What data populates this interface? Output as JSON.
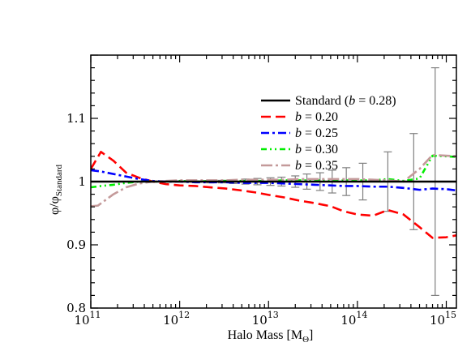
{
  "chart_data": {
    "type": "line",
    "title": "",
    "xlabel": "Halo Mass [M",
    "xlabel_sub": "Θ",
    "xlabel_close": "]",
    "ylabel": "φ/φ",
    "ylabel_sub": "Standard",
    "x_scale": "log",
    "xlim": [
      100000000000.0,
      1300000000000000.0
    ],
    "ylim": [
      0.8,
      1.2
    ],
    "grid": false,
    "legend_position": "top-right",
    "x_ticks": [
      {
        "value": 100000000000.0,
        "base": "10",
        "exp": "11"
      },
      {
        "value": 1000000000000.0,
        "base": "10",
        "exp": "12"
      },
      {
        "value": 10000000000000.0,
        "base": "10",
        "exp": "13"
      },
      {
        "value": 100000000000000.0,
        "base": "10",
        "exp": "14"
      },
      {
        "value": 1000000000000000.0,
        "base": "10",
        "exp": "15"
      }
    ],
    "y_ticks": [
      {
        "value": 0.8,
        "label": "0.8"
      },
      {
        "value": 0.9,
        "label": "0.9"
      },
      {
        "value": 1.0,
        "label": "1"
      },
      {
        "value": 1.1,
        "label": "1.1"
      }
    ],
    "series": [
      {
        "name": "Standard",
        "legend_paren_open": " (",
        "legend_b": "b",
        "legend_value": " = 0.28)",
        "color": "#000000",
        "dash": "solid",
        "x": [
          100000000000.0,
          1300000000000000.0
        ],
        "y": [
          1.0,
          1.0
        ]
      },
      {
        "name": "b = 0.20",
        "legend_b": "b",
        "legend_value": " = 0.20",
        "color": "#ff0000",
        "dash": "dashed",
        "x": [
          100000000000.0,
          130000000000.0,
          180000000000.0,
          250000000000.0,
          350000000000.0,
          500000000000.0,
          700000000000.0,
          1000000000000.0,
          1500000000000.0,
          2200000000000.0,
          3300000000000.0,
          5000000000000.0,
          7000000000000.0,
          10000000000000.0,
          15000000000000.0,
          22000000000000.0,
          33000000000000.0,
          50000000000000.0,
          70000000000000.0,
          100000000000000.0,
          150000000000000.0,
          220000000000000.0,
          330000000000000.0,
          500000000000000.0,
          700000000000000.0,
          1000000000000000.0,
          1300000000000000.0
        ],
        "y": [
          1.02,
          1.047,
          1.033,
          1.014,
          1.006,
          1.0,
          0.996,
          0.994,
          0.993,
          0.991,
          0.989,
          0.986,
          0.983,
          0.979,
          0.975,
          0.97,
          0.966,
          0.961,
          0.953,
          0.948,
          0.946,
          0.955,
          0.948,
          0.928,
          0.911,
          0.912,
          0.915
        ]
      },
      {
        "name": "b = 0.25",
        "legend_b": "b",
        "legend_value": " = 0.25",
        "color": "#0000ff",
        "dash": "dashdot",
        "x": [
          100000000000.0,
          130000000000.0,
          180000000000.0,
          250000000000.0,
          350000000000.0,
          500000000000.0,
          700000000000.0,
          1000000000000.0,
          1500000000000.0,
          2200000000000.0,
          3300000000000.0,
          5000000000000.0,
          7000000000000.0,
          10000000000000.0,
          15000000000000.0,
          22000000000000.0,
          33000000000000.0,
          50000000000000.0,
          70000000000000.0,
          100000000000000.0,
          150000000000000.0,
          220000000000000.0,
          330000000000000.0,
          500000000000000.0,
          700000000000000.0,
          1000000000000000.0,
          1300000000000000.0
        ],
        "y": [
          1.018,
          1.016,
          1.012,
          1.008,
          1.004,
          1.001,
          1.0,
          1.0,
          0.999,
          0.999,
          0.999,
          0.998,
          0.998,
          0.998,
          0.997,
          0.996,
          0.995,
          0.994,
          0.993,
          0.993,
          0.992,
          0.992,
          0.99,
          0.987,
          0.989,
          0.988,
          0.986
        ]
      },
      {
        "name": "b = 0.30",
        "legend_b": "b",
        "legend_value": " = 0.30",
        "color": "#00ee00",
        "dash": "dashdotdot",
        "x": [
          100000000000.0,
          130000000000.0,
          180000000000.0,
          250000000000.0,
          350000000000.0,
          500000000000.0,
          700000000000.0,
          1000000000000.0,
          1500000000000.0,
          2200000000000.0,
          3300000000000.0,
          5000000000000.0,
          7000000000000.0,
          10000000000000.0,
          15000000000000.0,
          22000000000000.0,
          33000000000000.0,
          50000000000000.0,
          70000000000000.0,
          100000000000000.0,
          150000000000000.0,
          220000000000000.0,
          330000000000000.0,
          500000000000000.0,
          700000000000000.0,
          1000000000000000.0,
          1300000000000000.0
        ],
        "y": [
          0.991,
          0.993,
          0.995,
          0.998,
          1.0,
          1.0,
          1.0,
          1.001,
          1.0,
          1.001,
          1.001,
          1.001,
          1.001,
          1.001,
          1.002,
          1.002,
          1.002,
          1.002,
          1.002,
          1.002,
          1.002,
          1.004,
          1.001,
          1.005,
          1.041,
          1.04,
          1.039
        ]
      },
      {
        "name": "b = 0.35",
        "legend_b": "b",
        "legend_value": " = 0.35",
        "color": "#c49a9a",
        "dash": "dashdot-long",
        "x": [
          100000000000.0,
          120000000000.0,
          180000000000.0,
          250000000000.0,
          350000000000.0,
          500000000000.0,
          700000000000.0,
          1000000000000.0,
          1500000000000.0,
          2200000000000.0,
          3300000000000.0,
          5000000000000.0,
          7000000000000.0,
          10000000000000.0,
          15000000000000.0,
          22000000000000.0,
          33000000000000.0,
          50000000000000.0,
          70000000000000.0,
          100000000000000.0,
          150000000000000.0,
          220000000000000.0,
          330000000000000.0,
          500000000000000.0,
          700000000000000.0,
          1000000000000000.0,
          1300000000000000.0
        ],
        "y": [
          0.961,
          0.962,
          0.98,
          0.991,
          0.997,
          1.0,
          1.001,
          1.002,
          1.002,
          1.002,
          1.002,
          1.003,
          1.003,
          1.003,
          1.003,
          1.004,
          1.004,
          1.004,
          1.004,
          1.004,
          1.003,
          1.002,
          1.0,
          1.02,
          1.042,
          1.041,
          1.04
        ]
      }
    ],
    "error_bars": {
      "color": "#808080",
      "points": [
        {
          "x": 1600000000000.0,
          "y": 1.0,
          "err": 0.001
        },
        {
          "x": 2200000000000.0,
          "y": 1.0,
          "err": 0.002
        },
        {
          "x": 3000000000000.0,
          "y": 1.0,
          "err": 0.002
        },
        {
          "x": 4000000000000.0,
          "y": 1.0,
          "err": 0.003
        },
        {
          "x": 5500000000000.0,
          "y": 1.0,
          "err": 0.004
        },
        {
          "x": 7500000000000.0,
          "y": 1.0,
          "err": 0.005
        },
        {
          "x": 10500000000000.0,
          "y": 1.0,
          "err": 0.006
        },
        {
          "x": 14000000000000.0,
          "y": 1.0,
          "err": 0.007
        },
        {
          "x": 20000000000000.0,
          "y": 1.0,
          "err": 0.009
        },
        {
          "x": 27000000000000.0,
          "y": 1.0,
          "err": 0.012
        },
        {
          "x": 38000000000000.0,
          "y": 1.0,
          "err": 0.014
        },
        {
          "x": 52000000000000.0,
          "y": 1.0,
          "err": 0.018
        },
        {
          "x": 75000000000000.0,
          "y": 1.0,
          "err": 0.022
        },
        {
          "x": 115000000000000.0,
          "y": 1.0,
          "err": 0.029
        },
        {
          "x": 220000000000000.0,
          "y": 1.0,
          "err": 0.047
        },
        {
          "x": 430000000000000.0,
          "y": 1.0,
          "err": 0.076
        },
        {
          "x": 750000000000000.0,
          "y": 1.0,
          "err": 0.18
        }
      ]
    }
  }
}
